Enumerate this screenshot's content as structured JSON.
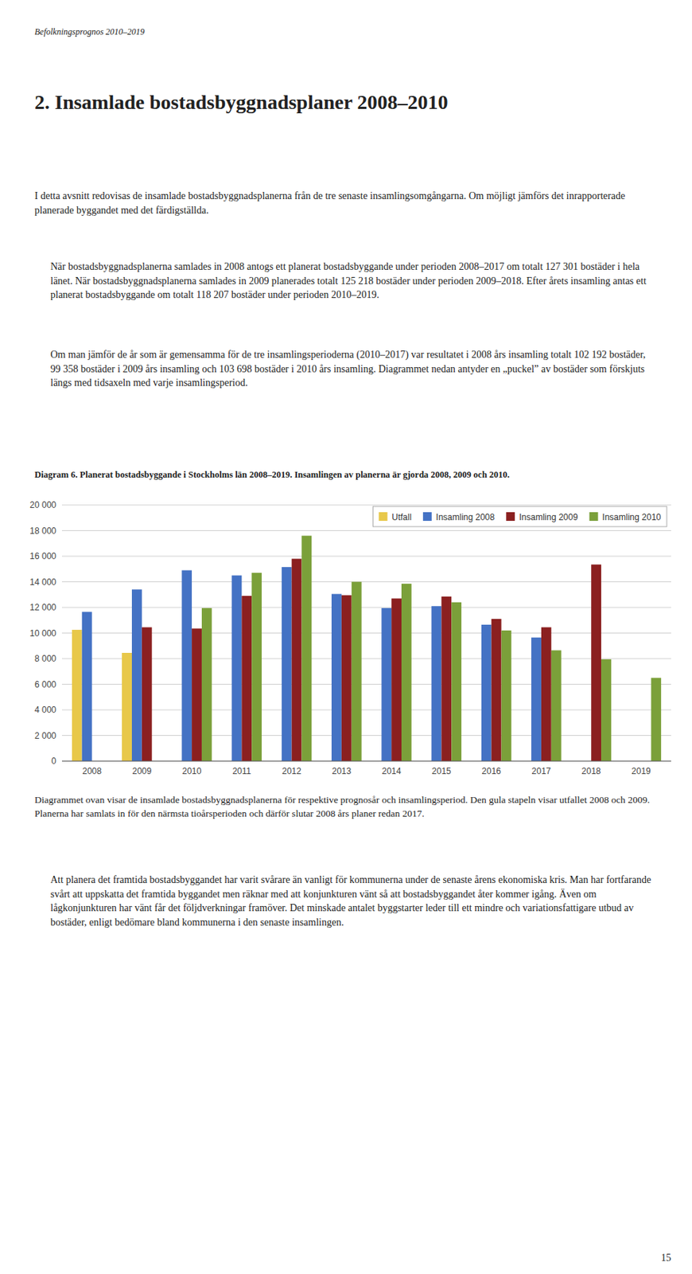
{
  "page_header": "Befolkningsprognos 2010–2019",
  "section_title": "2. Insamlade bostadsbyggnadsplaner 2008–2010",
  "body_text_0": "I detta avsnitt redovisas de insamlade bostadsbyggnadsplanerna från de tre senaste insamlingsomgångarna. Om möjligt jämförs det inrapporterade planerade byggandet med det färdigställda.",
  "body_text_1": "När bostadsbyggnadsplanerna samlades in 2008 antogs ett planerat bostadsbyggande under perioden 2008–2017 om totalt 127 301 bostäder i hela länet. När bostadsbyggnadsplanerna samlades in 2009 planerades totalt 125 218 bostäder under perioden 2009–2018. Efter årets insamling antas ett planerat bostadsbyggande om totalt 118 207 bostäder under perioden 2010–2019.",
  "body_text_2": "Om man jämför de år som är gemensamma för de tre insamlingsperioderna (2010–2017) var resultatet i 2008 års insamling totalt 102 192 bostäder, 99 358 bostäder i 2009 års insamling och 103 698 bostäder i 2010 års insamling. Diagrammet nedan antyder en „puckel” av bostäder som förskjuts längs med tidsaxeln med varje insamlingsperiod.",
  "diagram_caption": "Diagram 6. Planerat bostadsbyggande i Stockholms län 2008–2019. Insamlingen av planerna är gjorda 2008, 2009 och 2010.",
  "footer_text_1": "Diagrammet ovan visar de insamlade bostadsbyggnadsplanerna för respektive prognosår och insamlingsperiod. Den gula stapeln visar utfallet 2008 och 2009. Planerna har samlats in för den närmsta tioårsperioden och därför slutar 2008 års planer redan 2017.",
  "footer_text_2": "Att planera det framtida bostadsbyggandet har varit svårare än vanligt för kommunerna under de senaste årens ekonomiska kris. Man har fortfarande svårt att uppskatta det framtida byggandet men räknar med att konjunkturen vänt så att bostadsbyggandet åter kommer igång. Även om lågkonjunkturen har vänt får det följdverkningar framöver. Det minskade antalet byggstarter leder till ett mindre och variationsfattigare utbud av bostäder, enligt bedömare bland kommunerna i den senaste insamlingen.",
  "page_number": "15",
  "chart_data": {
    "type": "bar",
    "categories": [
      "2008",
      "2009",
      "2010",
      "2011",
      "2012",
      "2013",
      "2014",
      "2015",
      "2016",
      "2017",
      "2018",
      "2019"
    ],
    "series": [
      {
        "name": "Utfall",
        "color": "#E8C84A",
        "values": [
          10250,
          8450,
          null,
          null,
          null,
          null,
          null,
          null,
          null,
          null,
          null,
          null
        ]
      },
      {
        "name": "Insamling 2008",
        "color": "#4472C4",
        "values": [
          11650,
          13400,
          14900,
          14500,
          15150,
          13050,
          11950,
          12100,
          10650,
          9650,
          null,
          null
        ]
      },
      {
        "name": "Insamling 2009",
        "color": "#8B2020",
        "values": [
          null,
          10450,
          10350,
          12900,
          15800,
          12950,
          12700,
          12850,
          11100,
          10450,
          15350,
          null
        ]
      },
      {
        "name": "Insamling 2010",
        "color": "#7BA03A",
        "values": [
          null,
          null,
          11950,
          14700,
          17600,
          14000,
          13850,
          12400,
          10200,
          8650,
          7950,
          6500
        ]
      }
    ],
    "ylim": [
      0,
      20000
    ],
    "yticks": [
      0,
      {
        "value": 2000,
        "label": "2 000"
      },
      {
        "value": 4000,
        "label": "4 000"
      },
      {
        "value": 6000,
        "label": "6 000"
      },
      {
        "value": 8000,
        "label": "8 000"
      },
      {
        "value": 10000,
        "label": "10 000"
      },
      {
        "value": 12000,
        "label": "12 000"
      },
      {
        "value": 14000,
        "label": "14 000"
      },
      {
        "value": 16000,
        "label": "16 000"
      },
      {
        "value": 18000,
        "label": "18 000"
      },
      {
        "value": 20000,
        "label": "20 000"
      }
    ],
    "grid": true,
    "legend": "upper right"
  }
}
